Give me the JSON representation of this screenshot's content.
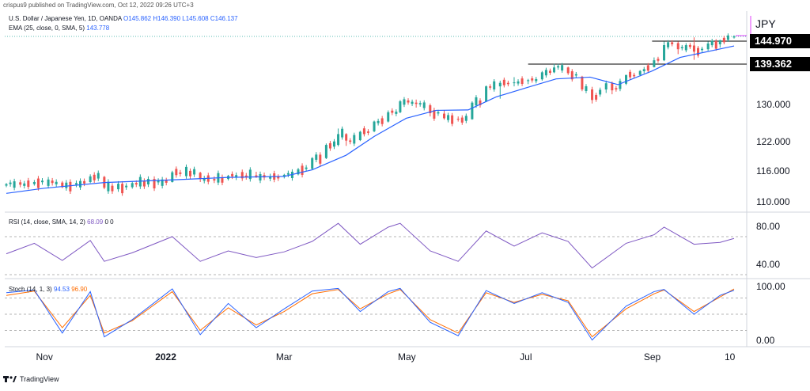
{
  "header": "crispus9 published on TradingView.com, Oct 12, 2022 09:26 UTC+3",
  "price_legend": {
    "title": "U.S. Dollar / Japanese Yen, 1D, OANDA",
    "ohlc": "O145.862 H146.390 L145.608 C146.137"
  },
  "ema_legend": {
    "label": "EMA (25, close, 0, SMA, 5)",
    "value": "143.778"
  },
  "rsi_legend": {
    "label": "RSI (14, close, SMA, 14, 2)",
    "value": "68.09",
    "extra": "0  0"
  },
  "stoch_legend": {
    "label": "Stoch (14, 1, 3)",
    "k": "94.53",
    "d": "96.90"
  },
  "symbol": "JPY",
  "price_tags": {
    "upper": "144.970",
    "lower": "139.362"
  },
  "footer": "TradingView",
  "colors": {
    "up": "#26a69a",
    "down": "#ef5350",
    "ema": "#2962ff",
    "rsi": "#7e57c2",
    "stoch_k": "#2962ff",
    "stoch_d": "#ff6d00",
    "level": "#000000"
  },
  "chart_data": [
    {
      "type": "candlestick",
      "pane": "price",
      "x_ticks": [
        "Nov",
        "2022",
        "Mar",
        "May",
        "Jul",
        "Sep",
        "10"
      ],
      "y_ticks": [
        "110.000",
        "116.000",
        "122.000",
        "130.000"
      ],
      "series": [
        {
          "name": "EMA (25, close, 0, SMA, 5)",
          "x": [
            "2021-10-13",
            "2021-11-01",
            "2021-12-01",
            "2022-01-03",
            "2022-02-01",
            "2022-03-01",
            "2022-03-15",
            "2022-04-01",
            "2022-04-15",
            "2022-05-01",
            "2022-05-16",
            "2022-06-01",
            "2022-06-15",
            "2022-07-01",
            "2022-07-15",
            "2022-08-01",
            "2022-08-15",
            "2022-09-01",
            "2022-09-15",
            "2022-10-12"
          ],
          "values": [
            111.8,
            112.8,
            113.9,
            114.4,
            114.9,
            115.1,
            116.4,
            119.4,
            123.3,
            127.2,
            128.9,
            129.0,
            131.9,
            134.1,
            136.0,
            136.4,
            134.7,
            137.8,
            141.0,
            143.8
          ]
        }
      ],
      "levels": [
        144.97,
        139.362
      ],
      "candles": [
        {
          "date": "2021-10-13",
          "o": 113.3,
          "h": 113.8,
          "l": 113.0,
          "c": 113.6
        },
        {
          "date": "2021-10-27",
          "o": 113.6,
          "h": 114.4,
          "l": 113.3,
          "c": 114.0
        },
        {
          "date": "2021-11-10",
          "o": 113.9,
          "h": 114.2,
          "l": 112.8,
          "c": 113.0
        },
        {
          "date": "2021-11-24",
          "o": 114.0,
          "h": 115.5,
          "l": 113.8,
          "c": 115.1
        },
        {
          "date": "2021-12-01",
          "o": 115.0,
          "h": 115.2,
          "l": 112.6,
          "c": 112.9
        },
        {
          "date": "2021-12-15",
          "o": 113.0,
          "h": 114.1,
          "l": 112.7,
          "c": 113.8
        },
        {
          "date": "2022-01-04",
          "o": 114.0,
          "h": 116.2,
          "l": 113.9,
          "c": 115.9
        },
        {
          "date": "2022-01-18",
          "o": 115.8,
          "h": 116.0,
          "l": 114.0,
          "c": 114.6
        },
        {
          "date": "2022-02-01",
          "o": 114.6,
          "h": 115.4,
          "l": 114.3,
          "c": 115.2
        },
        {
          "date": "2022-02-15",
          "o": 115.3,
          "h": 116.0,
          "l": 114.8,
          "c": 115.0
        },
        {
          "date": "2022-03-01",
          "o": 115.0,
          "h": 115.6,
          "l": 114.7,
          "c": 115.4
        },
        {
          "date": "2022-03-08",
          "o": 115.5,
          "h": 116.8,
          "l": 115.3,
          "c": 116.5
        },
        {
          "date": "2022-03-15",
          "o": 116.6,
          "h": 119.0,
          "l": 116.4,
          "c": 118.8
        },
        {
          "date": "2022-03-22",
          "o": 118.8,
          "h": 121.8,
          "l": 118.6,
          "c": 121.5
        },
        {
          "date": "2022-03-28",
          "o": 121.5,
          "h": 125.0,
          "l": 121.2,
          "c": 123.8
        },
        {
          "date": "2022-04-01",
          "o": 123.8,
          "h": 124.0,
          "l": 121.3,
          "c": 122.4
        },
        {
          "date": "2022-04-08",
          "o": 122.5,
          "h": 124.5,
          "l": 122.3,
          "c": 124.3
        },
        {
          "date": "2022-04-15",
          "o": 124.4,
          "h": 126.7,
          "l": 124.2,
          "c": 126.5
        },
        {
          "date": "2022-04-22",
          "o": 126.5,
          "h": 128.9,
          "l": 126.3,
          "c": 128.5
        },
        {
          "date": "2022-04-28",
          "o": 128.5,
          "h": 131.2,
          "l": 128.3,
          "c": 130.9
        },
        {
          "date": "2022-05-06",
          "o": 130.6,
          "h": 131.3,
          "l": 129.5,
          "c": 130.3
        },
        {
          "date": "2022-05-13",
          "o": 130.0,
          "h": 130.4,
          "l": 127.6,
          "c": 128.3
        },
        {
          "date": "2022-05-20",
          "o": 128.2,
          "h": 128.9,
          "l": 126.9,
          "c": 127.2
        },
        {
          "date": "2022-05-27",
          "o": 127.1,
          "h": 127.6,
          "l": 126.5,
          "c": 127.0
        },
        {
          "date": "2022-06-03",
          "o": 127.0,
          "h": 130.9,
          "l": 126.9,
          "c": 130.6
        },
        {
          "date": "2022-06-10",
          "o": 130.8,
          "h": 134.5,
          "l": 130.7,
          "c": 134.3
        },
        {
          "date": "2022-06-17",
          "o": 134.3,
          "h": 135.6,
          "l": 131.5,
          "c": 135.1
        },
        {
          "date": "2022-06-24",
          "o": 135.1,
          "h": 136.4,
          "l": 134.3,
          "c": 135.2
        },
        {
          "date": "2022-07-01",
          "o": 135.5,
          "h": 136.0,
          "l": 134.8,
          "c": 135.7
        },
        {
          "date": "2022-07-08",
          "o": 135.9,
          "h": 137.8,
          "l": 135.6,
          "c": 137.5
        },
        {
          "date": "2022-07-14",
          "o": 137.5,
          "h": 139.4,
          "l": 137.3,
          "c": 138.6
        },
        {
          "date": "2022-07-21",
          "o": 138.6,
          "h": 138.8,
          "l": 136.9,
          "c": 137.3
        },
        {
          "date": "2022-07-28",
          "o": 136.5,
          "h": 136.7,
          "l": 133.2,
          "c": 133.6
        },
        {
          "date": "2022-08-02",
          "o": 133.6,
          "h": 134.2,
          "l": 130.4,
          "c": 131.2
        },
        {
          "date": "2022-08-09",
          "o": 133.6,
          "h": 135.6,
          "l": 132.8,
          "c": 135.0
        },
        {
          "date": "2022-08-12",
          "o": 135.0,
          "h": 135.4,
          "l": 132.5,
          "c": 133.4
        },
        {
          "date": "2022-08-19",
          "o": 134.9,
          "h": 136.9,
          "l": 134.6,
          "c": 136.9
        },
        {
          "date": "2022-08-26",
          "o": 136.9,
          "h": 138.0,
          "l": 136.6,
          "c": 137.8
        },
        {
          "date": "2022-09-02",
          "o": 138.7,
          "h": 141.0,
          "l": 138.6,
          "c": 140.3
        },
        {
          "date": "2022-09-07",
          "o": 140.3,
          "h": 144.9,
          "l": 140.1,
          "c": 144.0
        },
        {
          "date": "2022-09-14",
          "o": 144.5,
          "h": 144.9,
          "l": 141.8,
          "c": 143.0
        },
        {
          "date": "2022-09-22",
          "o": 143.9,
          "h": 145.9,
          "l": 140.4,
          "c": 142.4
        },
        {
          "date": "2022-09-29",
          "o": 143.0,
          "h": 144.9,
          "l": 142.6,
          "c": 144.4
        },
        {
          "date": "2022-10-05",
          "o": 144.2,
          "h": 145.3,
          "l": 143.4,
          "c": 145.2
        },
        {
          "date": "2022-10-12",
          "o": 145.862,
          "h": 146.39,
          "l": 145.608,
          "c": 146.137
        }
      ]
    },
    {
      "type": "line",
      "pane": "RSI",
      "y_ticks": [
        "80.00",
        "40.00"
      ],
      "bands": [
        70,
        30
      ],
      "series": [
        {
          "name": "RSI (14, close, SMA, 14, 2)",
          "x": [
            "2021-10-13",
            "2021-10-27",
            "2021-11-10",
            "2021-11-24",
            "2021-12-01",
            "2021-12-15",
            "2022-01-04",
            "2022-01-18",
            "2022-02-01",
            "2022-02-15",
            "2022-03-01",
            "2022-03-15",
            "2022-03-28",
            "2022-04-08",
            "2022-04-22",
            "2022-04-28",
            "2022-05-13",
            "2022-05-27",
            "2022-06-10",
            "2022-06-24",
            "2022-07-08",
            "2022-07-21",
            "2022-08-02",
            "2022-08-19",
            "2022-09-02",
            "2022-09-07",
            "2022-09-22",
            "2022-10-05",
            "2022-10-12"
          ],
          "values": [
            52,
            63,
            45,
            66,
            44,
            53,
            70,
            44,
            55,
            48,
            54,
            65,
            84,
            62,
            80,
            84,
            55,
            44,
            76,
            60,
            74,
            65,
            37,
            63,
            72,
            80,
            62,
            64,
            68.09
          ]
        }
      ]
    },
    {
      "type": "line",
      "pane": "Stoch",
      "y_ticks": [
        "100.00",
        "0.00"
      ],
      "bands": [
        80,
        20
      ],
      "series": [
        {
          "name": "%K",
          "x": [
            "2021-10-13",
            "2021-10-27",
            "2021-11-10",
            "2021-11-24",
            "2021-12-01",
            "2021-12-15",
            "2022-01-04",
            "2022-01-18",
            "2022-02-01",
            "2022-02-15",
            "2022-03-01",
            "2022-03-15",
            "2022-03-28",
            "2022-04-08",
            "2022-04-22",
            "2022-04-28",
            "2022-05-13",
            "2022-05-27",
            "2022-06-10",
            "2022-06-24",
            "2022-07-08",
            "2022-07-21",
            "2022-08-02",
            "2022-08-19",
            "2022-09-02",
            "2022-09-07",
            "2022-09-22",
            "2022-10-05",
            "2022-10-12"
          ],
          "values": [
            90,
            95,
            15,
            92,
            8,
            40,
            97,
            12,
            70,
            25,
            60,
            93,
            98,
            55,
            92,
            98,
            35,
            10,
            94,
            70,
            90,
            72,
            2,
            65,
            92,
            96,
            50,
            85,
            94.53
          ]
        },
        {
          "name": "%D",
          "x": [
            "2021-10-13",
            "2021-10-27",
            "2021-11-10",
            "2021-11-24",
            "2021-12-01",
            "2021-12-15",
            "2022-01-04",
            "2022-01-18",
            "2022-02-01",
            "2022-02-15",
            "2022-03-01",
            "2022-03-15",
            "2022-03-28",
            "2022-04-08",
            "2022-04-22",
            "2022-04-28",
            "2022-05-13",
            "2022-05-27",
            "2022-06-10",
            "2022-06-24",
            "2022-07-08",
            "2022-07-21",
            "2022-08-02",
            "2022-08-19",
            "2022-09-02",
            "2022-09-07",
            "2022-09-22",
            "2022-10-05",
            "2022-10-12"
          ],
          "values": [
            85,
            93,
            25,
            85,
            15,
            38,
            92,
            20,
            62,
            30,
            55,
            88,
            96,
            60,
            88,
            96,
            40,
            15,
            90,
            72,
            87,
            75,
            8,
            60,
            88,
            95,
            55,
            82,
            96.9
          ]
        }
      ]
    }
  ]
}
